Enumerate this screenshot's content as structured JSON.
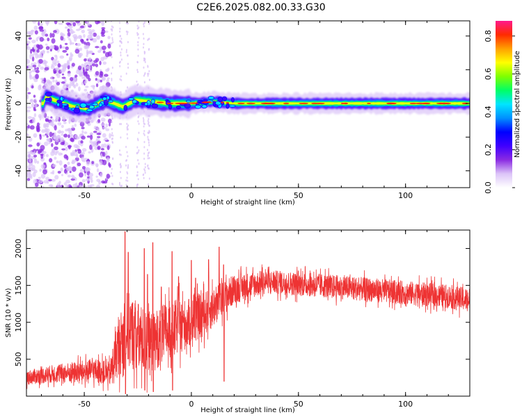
{
  "title": "C2E6.2025.082.00.33.G30",
  "colors": {
    "snr_line": "#ee3333",
    "core": "#ff2a00",
    "axis": "#000000"
  },
  "chart_data": [
    {
      "type": "heatmap",
      "xlabel": "Height of straight line (km)",
      "ylabel": "Frequency (Hz)",
      "xlim": [
        -77,
        130
      ],
      "ylim": [
        -50,
        49
      ],
      "xticks": [
        -50,
        0,
        50,
        100
      ],
      "yticks": [
        -40,
        -20,
        0,
        20,
        40
      ],
      "grid": false,
      "colorbar": {
        "label": "Normalized spectral amplitude",
        "range": [
          0,
          0.88
        ],
        "ticks": [
          "0.0",
          "0.2",
          "0.4",
          "0.6",
          "0.8"
        ],
        "colormap": [
          "#ffffff",
          "#dcc4f8",
          "#8a2be2",
          "#3f00ff",
          "#0000ff",
          "#0090ff",
          "#00e5ff",
          "#00ff66",
          "#7fff00",
          "#ffff00",
          "#ffa000",
          "#ff2a00",
          "#ff1a8c"
        ]
      },
      "ridge": {
        "centre_frequency": [
          {
            "x": -68,
            "f": 4
          },
          {
            "x": -62,
            "f": 1
          },
          {
            "x": -55,
            "f": -2
          },
          {
            "x": -48,
            "f": -3
          },
          {
            "x": -40,
            "f": 2
          },
          {
            "x": -32,
            "f": -2
          },
          {
            "x": -26,
            "f": 2
          },
          {
            "x": -18,
            "f": 1
          },
          {
            "x": -10,
            "f": 0
          },
          {
            "x": 0,
            "f": 0
          },
          {
            "x": 10,
            "f": 1
          },
          {
            "x": 20,
            "f": 0
          },
          {
            "x": 50,
            "f": 0
          },
          {
            "x": 100,
            "f": 0
          },
          {
            "x": 130,
            "f": 0
          }
        ],
        "scattered_noise_band_x": [
          -77,
          -38
        ]
      }
    },
    {
      "type": "line",
      "xlabel": "Height of straight line (km)",
      "ylabel": "SNR (10 * v/v)",
      "xlim": [
        -77,
        130
      ],
      "ylim": [
        0,
        2250
      ],
      "xticks": [
        -50,
        0,
        50,
        100
      ],
      "yticks": [
        500,
        1000,
        1500,
        2000
      ],
      "grid": false,
      "envelope": [
        {
          "x": -77,
          "mean": 250,
          "spread": 120
        },
        {
          "x": -65,
          "mean": 300,
          "spread": 150
        },
        {
          "x": -55,
          "mean": 320,
          "spread": 180
        },
        {
          "x": -45,
          "mean": 350,
          "spread": 200
        },
        {
          "x": -38,
          "mean": 300,
          "spread": 200
        },
        {
          "x": -35,
          "mean": 600,
          "spread": 450
        },
        {
          "x": -30,
          "mean": 900,
          "spread": 650
        },
        {
          "x": -25,
          "mean": 800,
          "spread": 600
        },
        {
          "x": -20,
          "mean": 700,
          "spread": 550
        },
        {
          "x": -15,
          "mean": 800,
          "spread": 500
        },
        {
          "x": -10,
          "mean": 900,
          "spread": 500
        },
        {
          "x": -5,
          "mean": 950,
          "spread": 450
        },
        {
          "x": 0,
          "mean": 1000,
          "spread": 400
        },
        {
          "x": 10,
          "mean": 1200,
          "spread": 350
        },
        {
          "x": 20,
          "mean": 1450,
          "spread": 250
        },
        {
          "x": 35,
          "mean": 1550,
          "spread": 200
        },
        {
          "x": 60,
          "mean": 1500,
          "spread": 200
        },
        {
          "x": 80,
          "mean": 1450,
          "spread": 200
        },
        {
          "x": 100,
          "mean": 1400,
          "spread": 200
        },
        {
          "x": 120,
          "mean": 1350,
          "spread": 200
        },
        {
          "x": 130,
          "mean": 1300,
          "spread": 200
        }
      ],
      "spikes": [
        {
          "x": -31,
          "y": 2230
        },
        {
          "x": -29.5,
          "y": 1950
        },
        {
          "x": -22,
          "y": 2000
        },
        {
          "x": -20.5,
          "y": 1650
        },
        {
          "x": -18,
          "y": 2080
        },
        {
          "x": -14,
          "y": 1480
        },
        {
          "x": -9,
          "y": 1960
        },
        {
          "x": -6,
          "y": 1620
        },
        {
          "x": 0,
          "y": 1840
        },
        {
          "x": 2,
          "y": 1600
        },
        {
          "x": 8,
          "y": 1850
        },
        {
          "x": 13,
          "y": 2020
        },
        {
          "x": 15,
          "y": 1780
        }
      ],
      "dips": [
        {
          "x": -31,
          "y": 30
        },
        {
          "x": -22,
          "y": 80
        },
        {
          "x": -18,
          "y": 60
        },
        {
          "x": -9,
          "y": 80
        },
        {
          "x": 15,
          "y": 200
        }
      ]
    }
  ]
}
